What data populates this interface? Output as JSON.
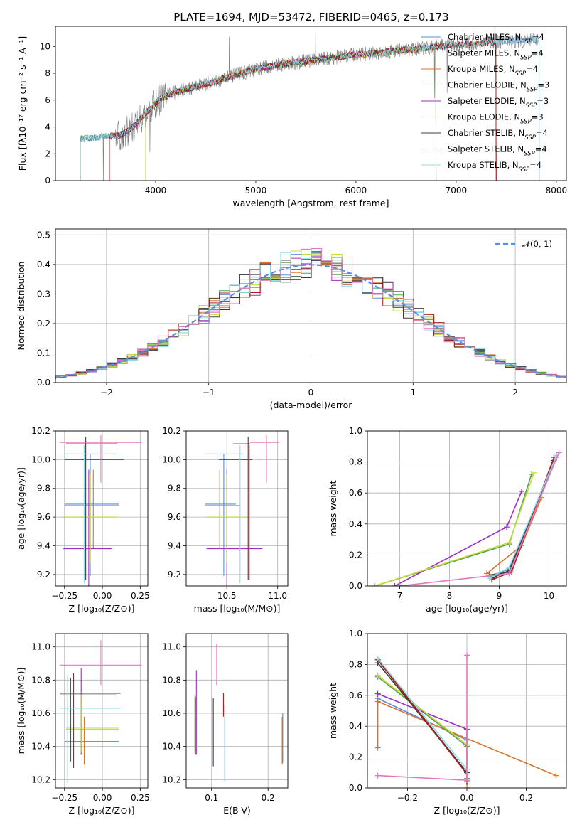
{
  "figure": {
    "title": "PLATE=1694, MJD=53472, FIBERID=0465, z=0.173"
  },
  "colors": {
    "Chabrier MILES": "#5b8fd9",
    "Salpeter MILES": "#4d4d4d",
    "Kroupa MILES": "#d9752f",
    "Chabrier ELODIE": "#59a14f",
    "Salpeter ELODIE": "#9b30c2",
    "Kroupa ELODIE": "#c9d935",
    "Chabrier STELIB": "#3b3b3b",
    "Salpeter STELIB": "#b01c1c",
    "Kroupa STELIB": "#8fdbe6",
    "pink": "#e377c2",
    "data": "#808080",
    "normal": "#5b8fd9"
  },
  "chart_data": [
    {
      "id": "spectrum",
      "type": "line",
      "xlabel": "wavelength [Angstrom, rest frame]",
      "ylabel": "Flux [fλ10⁻¹⁷ erg cm⁻² s⁻¹ A⁻¹]",
      "xlim": [
        3000,
        8100
      ],
      "ylim": [
        0,
        11.5
      ],
      "xticks": [
        4000,
        5000,
        6000,
        7000,
        8000
      ],
      "yticks": [
        0,
        2,
        4,
        6,
        8,
        10
      ],
      "grid": false,
      "legend_position": "top-right",
      "legend": [
        {
          "name": "Chabrier MILES",
          "nssp": "4"
        },
        {
          "name": "Salpeter MILES",
          "nssp": "4"
        },
        {
          "name": "Kroupa MILES",
          "nssp": "4"
        },
        {
          "name": "Chabrier ELODIE",
          "nssp": "3"
        },
        {
          "name": "Salpeter ELODIE",
          "nssp": "3"
        },
        {
          "name": "Kroupa ELODIE",
          "nssp": "3"
        },
        {
          "name": "Chabrier STELIB",
          "nssp": "4"
        },
        {
          "name": "Salpeter STELIB",
          "nssp": "4"
        },
        {
          "name": "Kroupa STELIB",
          "nssp": "4"
        }
      ],
      "continuum": {
        "x": [
          3250,
          3500,
          3650,
          3750,
          3850,
          3950,
          4050,
          4200,
          4400,
          4600,
          4800,
          5000,
          5200,
          5400,
          5600,
          5800,
          6000,
          6200,
          6400,
          6600,
          6800,
          7000,
          7200,
          7400,
          7600,
          7800
        ],
        "y": [
          3.1,
          3.3,
          3.4,
          3.8,
          4.6,
          5.4,
          6.1,
          6.6,
          7.0,
          7.4,
          7.9,
          8.3,
          8.6,
          8.8,
          9.0,
          9.2,
          9.4,
          9.5,
          9.7,
          9.8,
          10.0,
          10.1,
          10.2,
          10.3,
          10.4,
          10.5
        ]
      }
    },
    {
      "id": "residual-histogram",
      "type": "line",
      "xlabel": "(data-model)/error",
      "ylabel": "Normed distribution",
      "xlim": [
        -2.5,
        2.5
      ],
      "ylim": [
        0,
        0.52
      ],
      "xticks": [
        -2,
        -1,
        0,
        1,
        2
      ],
      "yticks": [
        0.0,
        0.1,
        0.2,
        0.3,
        0.4,
        0.5
      ],
      "grid": true,
      "legend_position": "top-right",
      "legend": [
        {
          "name": "𝒩(0, 1)"
        }
      ],
      "bin_width": 0.1,
      "normal": {
        "mean": 0,
        "sigma": 1
      }
    },
    {
      "id": "age-vs-Z",
      "type": "scatter",
      "xlabel": "Z [log₁₀(Z/Z⊙)]",
      "ylabel": "age  [log₁₀(age/yr)]",
      "xlim": [
        -0.31,
        0.3
      ],
      "ylim": [
        9.12,
        10.2
      ],
      "xticks": [
        -0.25,
        0.0,
        0.25
      ],
      "yticks": [
        9.2,
        9.4,
        9.6,
        9.8,
        10.0,
        10.2
      ],
      "grid": true,
      "errorbars": [
        {
          "series": "Chabrier MILES",
          "x": -0.08,
          "xerr": [
            0.17,
            0.19
          ],
          "y": 9.69,
          "yerr": [
            0.5,
            0.35
          ]
        },
        {
          "series": "Kroupa MILES",
          "x": -0.06,
          "xerr": [
            0.19,
            0.17
          ],
          "y": 9.68,
          "yerr": [
            0.3,
            0.25
          ]
        },
        {
          "series": "Chabrier ELODIE",
          "x": -0.08,
          "xerr": [
            0.19,
            0.17
          ],
          "y": 9.6,
          "yerr": [
            0.3,
            0.3
          ]
        },
        {
          "series": "Salpeter ELODIE",
          "x": -0.09,
          "xerr": [
            0.17,
            0.15
          ],
          "y": 9.38,
          "yerr": [
            0.3,
            0.55
          ]
        },
        {
          "series": "Kroupa ELODIE",
          "x": -0.08,
          "xerr": [
            0.19,
            0.19
          ],
          "y": 9.6,
          "yerr": [
            0.32,
            0.3
          ]
        },
        {
          "series": "Chabrier STELIB",
          "x": -0.11,
          "xerr": [
            0.13,
            0.21
          ],
          "y": 10.11,
          "yerr": [
            0.95,
            0.05
          ]
        },
        {
          "series": "Salpeter STELIB",
          "x": -0.12,
          "xerr": [
            0.13,
            0.26
          ],
          "y": 10.0,
          "yerr": [
            0.84,
            0.1
          ]
        },
        {
          "series": "Kroupa STELIB",
          "x": -0.12,
          "xerr": [
            0.13,
            0.21
          ],
          "y": 10.04,
          "yerr": [
            0.9,
            0.06
          ]
        },
        {
          "series": "pink",
          "x": -0.01,
          "xerr": [
            0.27,
            0.27
          ],
          "y": 10.12,
          "yerr": [
            0.28,
            0.05
          ]
        }
      ]
    },
    {
      "id": "age-vs-mass",
      "type": "scatter",
      "xlabel": "mass [log₁₀(M/M⊙)]",
      "ylabel": "",
      "xlim": [
        10.1,
        11.1
      ],
      "ylim": [
        9.12,
        10.2
      ],
      "xticks": [
        10.5,
        11.0
      ],
      "yticks": [
        9.2,
        9.4,
        9.6,
        9.8,
        10.0,
        10.2
      ],
      "grid": true,
      "errorbars": [
        {
          "series": "Chabrier MILES",
          "x": 10.47,
          "xerr": [
            0.18,
            0.12
          ],
          "y": 9.69,
          "yerr": [
            0.5,
            0.35
          ]
        },
        {
          "series": "Kroupa MILES",
          "x": 10.43,
          "xerr": [
            0.15,
            0.2
          ],
          "y": 9.68,
          "yerr": [
            0.3,
            0.25
          ]
        },
        {
          "series": "Chabrier ELODIE",
          "x": 10.5,
          "xerr": [
            0.2,
            0.22
          ],
          "y": 9.6,
          "yerr": [
            0.3,
            0.3
          ]
        },
        {
          "series": "Salpeter ELODIE",
          "x": 10.5,
          "xerr": [
            0.2,
            0.35
          ],
          "y": 9.38,
          "yerr": [
            0.3,
            0.55
          ]
        },
        {
          "series": "Kroupa ELODIE",
          "x": 10.5,
          "xerr": [
            0.2,
            0.22
          ],
          "y": 9.6,
          "yerr": [
            0.32,
            0.3
          ]
        },
        {
          "series": "Chabrier STELIB",
          "x": 10.71,
          "xerr": [
            0.15,
            0.02
          ],
          "y": 10.11,
          "yerr": [
            0.95,
            0.05
          ]
        },
        {
          "series": "Salpeter STELIB",
          "x": 10.72,
          "xerr": [
            0.3,
            0.03
          ],
          "y": 10.0,
          "yerr": [
            0.84,
            0.1
          ]
        },
        {
          "series": "Kroupa STELIB",
          "x": 10.63,
          "xerr": [
            0.35,
            0.03
          ],
          "y": 10.04,
          "yerr": [
            0.9,
            0.06
          ]
        },
        {
          "series": "pink",
          "x": 10.89,
          "xerr": [
            0.16,
            0.12
          ],
          "y": 10.12,
          "yerr": [
            0.28,
            0.05
          ]
        }
      ]
    },
    {
      "id": "mass-weight-vs-age",
      "type": "line",
      "xlabel": "age  [log₁₀(age/yr)]",
      "ylabel": "mass weight",
      "xlim": [
        6.35,
        10.35
      ],
      "ylim": [
        0.0,
        1.0
      ],
      "xticks": [
        7,
        8,
        9,
        10
      ],
      "yticks": [
        0.0,
        0.2,
        0.4,
        0.6,
        0.8,
        1.0
      ],
      "grid": true,
      "series": [
        {
          "name": "Chabrier MILES",
          "x": [
            8.8,
            9.2,
            10.15
          ],
          "y": [
            0.06,
            0.11,
            0.83
          ]
        },
        {
          "name": "Salpeter MILES",
          "x": [
            8.8,
            9.2,
            10.15
          ],
          "y": [
            0.07,
            0.09,
            0.84
          ]
        },
        {
          "name": "Kroupa MILES",
          "x": [
            8.75,
            9.45,
            9.85
          ],
          "y": [
            0.08,
            0.26,
            0.57
          ]
        },
        {
          "name": "Chabrier ELODIE",
          "x": [
            6.5,
            9.2,
            9.65
          ],
          "y": [
            0.0,
            0.27,
            0.72
          ]
        },
        {
          "name": "Salpeter ELODIE",
          "x": [
            6.9,
            9.15,
            9.45
          ],
          "y": [
            0.0,
            0.38,
            0.61
          ]
        },
        {
          "name": "Kroupa ELODIE",
          "x": [
            6.5,
            9.2,
            9.7
          ],
          "y": [
            0.0,
            0.28,
            0.73
          ]
        },
        {
          "name": "Chabrier STELIB",
          "x": [
            8.85,
            9.2,
            10.1
          ],
          "y": [
            0.05,
            0.1,
            0.81
          ]
        },
        {
          "name": "Salpeter STELIB",
          "x": [
            8.85,
            9.25,
            10.1
          ],
          "y": [
            0.04,
            0.09,
            0.83
          ]
        },
        {
          "name": "Kroupa STELIB",
          "x": [
            8.8,
            9.2,
            10.15
          ],
          "y": [
            0.05,
            0.12,
            0.84
          ]
        },
        {
          "name": "pink",
          "x": [
            7.0,
            9.2,
            10.2
          ],
          "y": [
            0.0,
            0.08,
            0.86
          ]
        }
      ]
    },
    {
      "id": "mass-vs-Z",
      "type": "scatter",
      "xlabel": "Z [log₁₀(Z/Z⊙)]",
      "ylabel": "mass [log₁₀(M/M⊙)]",
      "xlim": [
        -0.31,
        0.3
      ],
      "ylim": [
        10.15,
        11.08
      ],
      "xticks": [
        -0.25,
        0.0,
        0.25
      ],
      "yticks": [
        10.2,
        10.4,
        10.6,
        10.8,
        11.0
      ],
      "grid": true,
      "errorbars": [
        {
          "series": "Chabrier MILES",
          "x": -0.2,
          "xerr": [
            0.05,
            0.31
          ],
          "y": 10.43,
          "yerr": [
            0.12,
            0.2
          ]
        },
        {
          "series": "Kroupa MILES",
          "x": -0.12,
          "xerr": [
            0.12,
            0.23
          ],
          "y": 10.43,
          "yerr": [
            0.14,
            0.15
          ]
        },
        {
          "series": "Chabrier ELODIE",
          "x": -0.14,
          "xerr": [
            0.1,
            0.25
          ],
          "y": 10.5,
          "yerr": [
            0.15,
            0.2
          ]
        },
        {
          "series": "Salpeter ELODIE",
          "x": -0.14,
          "xerr": [
            0.1,
            0.25
          ],
          "y": 10.5,
          "yerr": [
            0.15,
            0.37
          ]
        },
        {
          "series": "Kroupa ELODIE",
          "x": -0.14,
          "xerr": [
            0.1,
            0.25
          ],
          "y": 10.51,
          "yerr": [
            0.15,
            0.2
          ]
        },
        {
          "series": "Chabrier STELIB",
          "x": -0.21,
          "xerr": [
            0.07,
            0.3
          ],
          "y": 10.71,
          "yerr": [
            0.4,
            0.1
          ]
        },
        {
          "series": "Salpeter STELIB",
          "x": -0.19,
          "xerr": [
            0.09,
            0.31
          ],
          "y": 10.72,
          "yerr": [
            0.45,
            0.12
          ]
        },
        {
          "series": "Kroupa STELIB",
          "x": -0.23,
          "xerr": [
            0.05,
            0.35
          ],
          "y": 10.63,
          "yerr": [
            0.45,
            0.2
          ]
        },
        {
          "series": "pink",
          "x": -0.01,
          "xerr": [
            0.27,
            0.27
          ],
          "y": 10.89,
          "yerr": [
            0.12,
            0.15
          ]
        }
      ]
    },
    {
      "id": "mass-vs-EBV",
      "type": "scatter",
      "xlabel": "E(B-V)",
      "ylabel": "",
      "xlim": [
        0.055,
        0.235
      ],
      "ylim": [
        10.15,
        11.08
      ],
      "xticks": [
        0.1,
        0.2
      ],
      "yticks": [
        10.2,
        10.4,
        10.6,
        10.8,
        11.0
      ],
      "grid": true,
      "errorbars": [
        {
          "series": "Chabrier MILES",
          "x": 0.226,
          "y": 10.45,
          "yerr": [
            0.15,
            0.15
          ]
        },
        {
          "series": "Kroupa MILES",
          "x": 0.225,
          "y": 10.43,
          "yerr": [
            0.14,
            0.15
          ]
        },
        {
          "series": "Chabrier ELODIE",
          "x": 0.072,
          "y": 10.5,
          "yerr": [
            0.15,
            0.2
          ]
        },
        {
          "series": "Salpeter ELODIE",
          "x": 0.073,
          "y": 10.5,
          "yerr": [
            0.15,
            0.36
          ]
        },
        {
          "series": "Kroupa ELODIE",
          "x": 0.07,
          "y": 10.51,
          "yerr": [
            0.15,
            0.2
          ]
        },
        {
          "series": "Chabrier STELIB",
          "x": 0.103,
          "y": 10.59,
          "yerr": [
            0.31,
            0.1
          ]
        },
        {
          "series": "Salpeter STELIB",
          "x": 0.121,
          "y": 10.68,
          "yerr": [
            0.1,
            0.04
          ]
        },
        {
          "series": "Kroupa STELIB",
          "x": 0.123,
          "y": 10.45,
          "yerr": [
            0.26,
            0.2
          ]
        },
        {
          "series": "pink",
          "x": 0.109,
          "y": 10.89,
          "yerr": [
            0.12,
            0.13
          ]
        }
      ]
    },
    {
      "id": "mass-weight-vs-Z",
      "type": "line",
      "xlabel": "Z [log₁₀(Z/Z⊙)]",
      "ylabel": "mass weight",
      "xlim": [
        -0.335,
        0.335
      ],
      "ylim": [
        0.0,
        1.0
      ],
      "xticks": [
        -0.2,
        0.0,
        0.2
      ],
      "yticks": [
        0.0,
        0.2,
        0.4,
        0.6,
        0.8,
        1.0
      ],
      "grid": true,
      "series": [
        {
          "name": "Chabrier MILES",
          "x": [
            -0.3,
            0.0,
            0.0
          ],
          "y": [
            0.58,
            0.31,
            0.06
          ]
        },
        {
          "name": "Salpeter MILES",
          "x": [
            -0.3,
            0.0,
            0.0
          ],
          "y": [
            0.83,
            0.1,
            0.06
          ]
        },
        {
          "name": "Kroupa MILES",
          "x": [
            -0.3,
            -0.3,
            0.3
          ],
          "y": [
            0.26,
            0.56,
            0.08
          ]
        },
        {
          "name": "Chabrier ELODIE",
          "x": [
            -0.3,
            0.0,
            0.0
          ],
          "y": [
            0.72,
            0.27,
            0.0
          ]
        },
        {
          "name": "Salpeter ELODIE",
          "x": [
            -0.3,
            0.0,
            0.0
          ],
          "y": [
            0.61,
            0.38,
            0.0
          ]
        },
        {
          "name": "Kroupa ELODIE",
          "x": [
            -0.3,
            0.0,
            0.0
          ],
          "y": [
            0.73,
            0.28,
            0.0
          ]
        },
        {
          "name": "Chabrier STELIB",
          "x": [
            -0.3,
            0.0,
            0.0
          ],
          "y": [
            0.81,
            0.1,
            0.04
          ]
        },
        {
          "name": "Salpeter STELIB",
          "x": [
            -0.3,
            0.0,
            0.0
          ],
          "y": [
            0.83,
            0.09,
            0.04
          ]
        },
        {
          "name": "Kroupa STELIB",
          "x": [
            -0.3,
            0.0,
            0.0
          ],
          "y": [
            0.84,
            0.12,
            0.05
          ]
        },
        {
          "name": "pink",
          "x": [
            -0.3,
            0.0,
            0.0
          ],
          "y": [
            0.08,
            0.05,
            0.86
          ]
        }
      ]
    }
  ]
}
